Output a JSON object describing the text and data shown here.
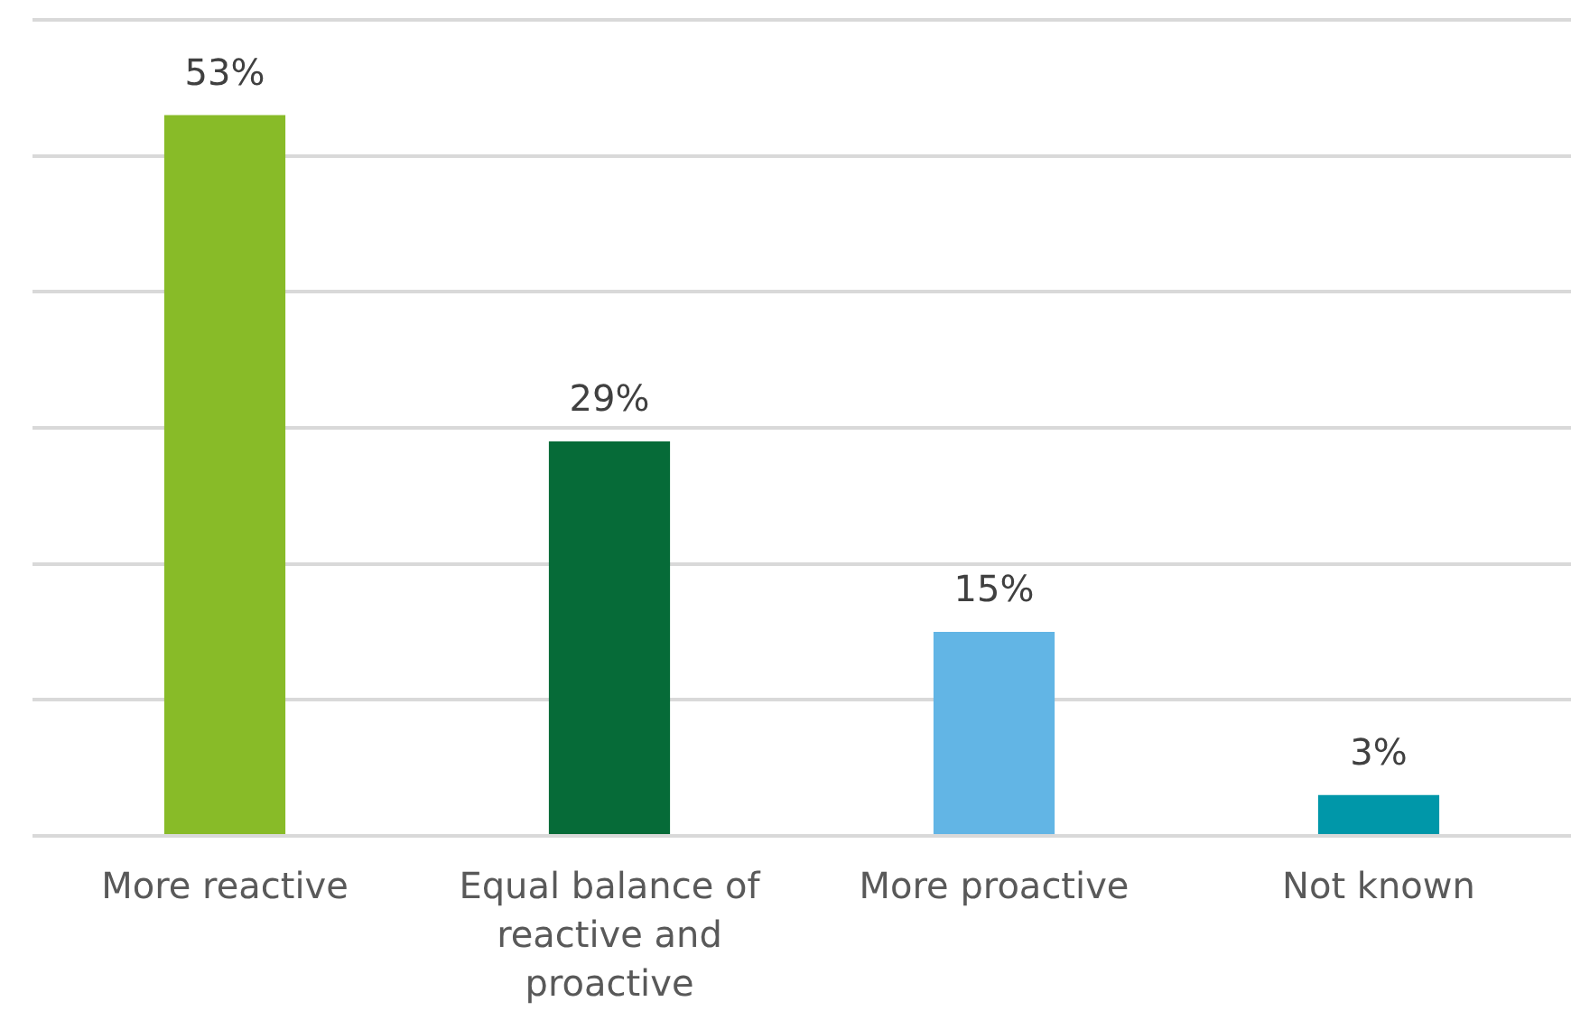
{
  "chart_data": {
    "type": "bar",
    "categories": [
      "More reactive",
      "Equal balance of reactive and proactive",
      "More proactive",
      "Not known"
    ],
    "values": [
      53,
      29,
      15,
      3
    ],
    "colors": [
      "#88bb28",
      "#066b38",
      "#62b5e5",
      "#0097a9"
    ],
    "value_labels": [
      "53%",
      "29%",
      "15%",
      "3%"
    ],
    "ylim": [
      0,
      60
    ],
    "yticks": [
      {
        "value": 0,
        "label": null
      },
      {
        "value": 10,
        "label": null
      },
      {
        "value": 20,
        "label": null
      },
      {
        "value": 30,
        "label": null
      },
      {
        "value": 40,
        "label": null
      },
      {
        "value": 50,
        "label": null
      },
      {
        "value": 60,
        "label": null
      }
    ],
    "grid": "y",
    "tick_labels": "x"
  }
}
